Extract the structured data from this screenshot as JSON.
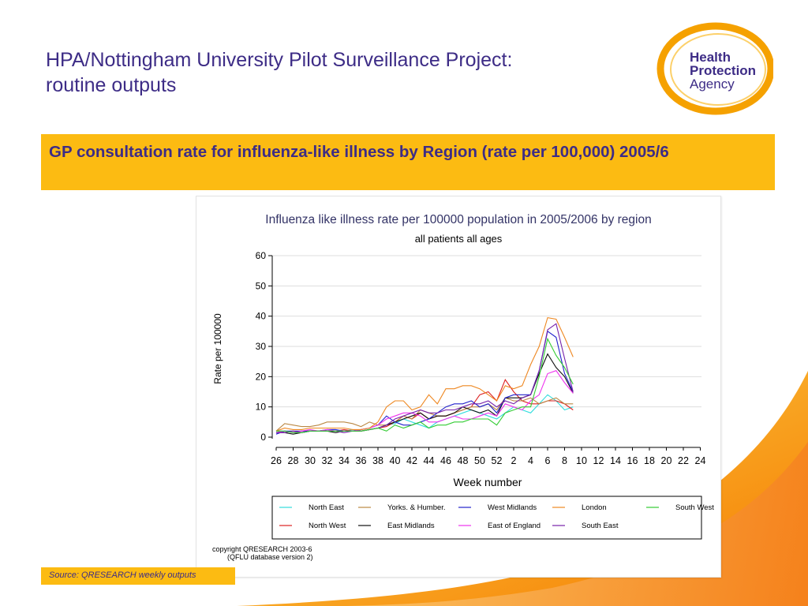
{
  "slide": {
    "title_line1": "HPA/Nottingham University Pilot Surveillance Project:",
    "title_line2": "routine outputs",
    "banner": "GP consultation rate for influenza-like illness by Region (rate per 100,000) 2005/6",
    "source": "Source: QRESEARCH weekly outputs"
  },
  "logo": {
    "line1": "Health",
    "line2": "Protection",
    "line3": "Agency"
  },
  "colors": {
    "title": "#3d2c86",
    "banner": "#fcbb12",
    "logo_orange": "#f5a100",
    "swoosh_orange": "#f7941d"
  },
  "chart_data": {
    "type": "line",
    "title": "Influenza like illness rate per 100000 population in 2005/2006 by region",
    "subtitle": "all patients  all ages",
    "xlabel": "Week number",
    "ylabel": "Rate per 100000",
    "ylim": [
      0,
      60
    ],
    "yticks": [
      0,
      10,
      20,
      30,
      40,
      50,
      60
    ],
    "x_tick_labels": [
      "26",
      "28",
      "30",
      "32",
      "34",
      "36",
      "38",
      "40",
      "42",
      "44",
      "46",
      "48",
      "50",
      "52",
      "2",
      "4",
      "6",
      "8",
      "10",
      "12",
      "14",
      "16",
      "18",
      "20",
      "22",
      "24"
    ],
    "x_weeks": [
      26,
      27,
      28,
      29,
      30,
      31,
      32,
      33,
      34,
      35,
      36,
      37,
      38,
      39,
      40,
      41,
      42,
      43,
      44,
      45,
      46,
      47,
      48,
      49,
      50,
      51,
      52,
      1,
      2,
      3,
      4,
      5,
      6,
      7,
      8,
      9
    ],
    "grid": true,
    "legend": "bottom",
    "copyright_line1": "copyright QRESEARCH 2003-6",
    "copyright_line2": "(QFLU database version 2)",
    "series": [
      {
        "name": "North East",
        "color": "#33dddd",
        "values": [
          2,
          2,
          1.5,
          1.5,
          2,
          2,
          2.5,
          2,
          2,
          2.5,
          2,
          2.5,
          3,
          4,
          4.5,
          6,
          5,
          4,
          3,
          5,
          6,
          7,
          8,
          9,
          8,
          7,
          6,
          8,
          10,
          9,
          8,
          11,
          14,
          12,
          9,
          10
        ]
      },
      {
        "name": "North West",
        "color": "#dd2222",
        "values": [
          1.5,
          2,
          1.5,
          2,
          2,
          2,
          2,
          2,
          2.5,
          2,
          2,
          2.5,
          3,
          3.5,
          5,
          7,
          6,
          8,
          6,
          7,
          7,
          8,
          9,
          10,
          14,
          15,
          12,
          19,
          15,
          12,
          11,
          11,
          12,
          12,
          11,
          9
        ]
      },
      {
        "name": "Yorks. & Humber.",
        "color": "#bb8844",
        "values": [
          2,
          4.5,
          4,
          3.5,
          3.5,
          4,
          5,
          5,
          5,
          4.5,
          3.5,
          5,
          4,
          4,
          5,
          7,
          6,
          9,
          8,
          7,
          7,
          8,
          9,
          10,
          10,
          11,
          9,
          13,
          12,
          12,
          13,
          11,
          12,
          13,
          11,
          11
        ]
      },
      {
        "name": "East Midlands",
        "color": "#111111",
        "values": [
          1.5,
          1.5,
          1,
          1.5,
          2,
          2,
          2,
          1.5,
          2,
          2,
          2,
          2.5,
          3,
          4,
          5,
          6,
          7,
          8,
          6,
          7,
          7,
          8,
          10,
          9,
          8,
          9,
          7,
          13,
          13,
          13,
          14,
          21,
          27.5,
          23,
          20,
          14.5
        ]
      },
      {
        "name": "West Midlands",
        "color": "#2222cc",
        "values": [
          1,
          2,
          2,
          2,
          2,
          2,
          2.5,
          2.5,
          2,
          2,
          2.5,
          3,
          4,
          7,
          5,
          4,
          4,
          5,
          6,
          8,
          10,
          11,
          11,
          12,
          10,
          11,
          8,
          13,
          14,
          14,
          14,
          22,
          35,
          33,
          21,
          15
        ]
      },
      {
        "name": "East of England",
        "color": "#ee33ee",
        "values": [
          1.5,
          2,
          1.5,
          2,
          2.5,
          2,
          2.5,
          2,
          2,
          2,
          2.5,
          3,
          4,
          6,
          7,
          8,
          8,
          7,
          5,
          5,
          6,
          7,
          6,
          6,
          7,
          8,
          7,
          11,
          10,
          9,
          12,
          14,
          21,
          22,
          18,
          14.5
        ]
      },
      {
        "name": "London",
        "color": "#ee8822",
        "values": [
          2,
          3,
          2.5,
          2.5,
          3,
          3,
          3,
          3,
          3,
          2.5,
          2.5,
          3,
          5,
          10,
          12,
          12,
          9,
          10,
          14,
          11,
          16,
          16,
          17,
          17,
          16,
          14,
          12,
          17,
          16,
          17,
          24,
          30,
          39.5,
          39,
          33,
          26.5
        ]
      },
      {
        "name": "South East",
        "color": "#7722aa",
        "values": [
          1.5,
          1.5,
          2,
          1.5,
          2,
          2,
          2,
          2,
          1.5,
          2,
          2,
          2.5,
          3,
          4,
          6,
          7,
          8,
          9,
          8,
          8,
          9,
          9,
          10,
          11,
          11,
          12,
          10,
          12,
          11,
          13,
          14,
          22,
          35.5,
          37.5,
          26,
          15
        ]
      },
      {
        "name": "South West",
        "color": "#33cc33",
        "values": [
          2,
          2,
          1.5,
          1.5,
          2,
          2,
          2,
          2,
          2,
          2,
          2,
          2.5,
          3,
          2,
          4,
          3,
          4,
          5,
          3,
          4,
          4,
          5,
          5,
          6,
          6,
          6,
          4,
          8,
          9,
          10,
          10,
          20,
          32.5,
          27,
          23,
          17.5
        ]
      }
    ]
  }
}
